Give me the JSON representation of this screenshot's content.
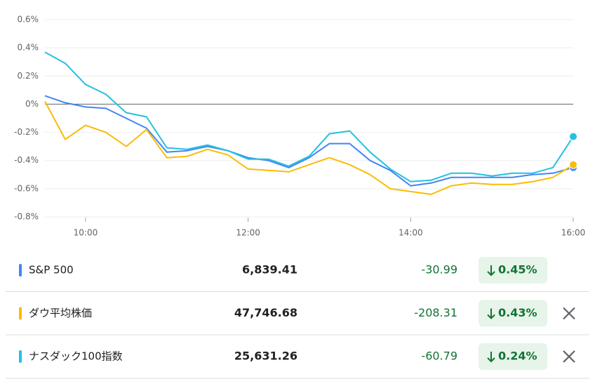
{
  "chart_data": {
    "type": "line",
    "x": [
      570,
      585,
      600,
      615,
      630,
      645,
      660,
      675,
      690,
      705,
      720,
      735,
      750,
      765,
      780,
      795,
      810,
      825,
      840,
      855,
      870,
      885,
      900,
      915,
      930,
      945,
      960
    ],
    "xlim": [
      570,
      960
    ],
    "xticks": [
      {
        "value": 600,
        "label": "10:00"
      },
      {
        "value": 720,
        "label": "12:00"
      },
      {
        "value": 840,
        "label": "14:00"
      },
      {
        "value": 960,
        "label": "16:00"
      }
    ],
    "ylim": [
      -0.8,
      0.6
    ],
    "yticks": [
      {
        "value": 0.6,
        "label": "0.6%"
      },
      {
        "value": 0.4,
        "label": "0.4%"
      },
      {
        "value": 0.2,
        "label": "0.2%"
      },
      {
        "value": 0,
        "label": "0%"
      },
      {
        "value": -0.2,
        "label": "-0.2%"
      },
      {
        "value": -0.4,
        "label": "-0.4%"
      },
      {
        "value": -0.6,
        "label": "-0.6%"
      },
      {
        "value": -0.8,
        "label": "-0.8%"
      }
    ],
    "grid": true,
    "series": [
      {
        "name": "S&P 500",
        "color": "#4285f4",
        "values": [
          0.06,
          0.01,
          -0.02,
          -0.03,
          -0.1,
          -0.17,
          -0.34,
          -0.33,
          -0.3,
          -0.33,
          -0.38,
          -0.4,
          -0.45,
          -0.38,
          -0.28,
          -0.28,
          -0.4,
          -0.47,
          -0.58,
          -0.56,
          -0.52,
          -0.52,
          -0.52,
          -0.52,
          -0.5,
          -0.49,
          -0.45
        ]
      },
      {
        "name": "ダウ平均株価",
        "color": "#fbbc04",
        "values": [
          0.02,
          -0.25,
          -0.15,
          -0.2,
          -0.3,
          -0.18,
          -0.38,
          -0.37,
          -0.32,
          -0.36,
          -0.46,
          -0.47,
          -0.48,
          -0.43,
          -0.38,
          -0.43,
          -0.5,
          -0.6,
          -0.62,
          -0.64,
          -0.58,
          -0.56,
          -0.57,
          -0.57,
          -0.55,
          -0.52,
          -0.43
        ]
      },
      {
        "name": "ナスダック100指数",
        "color": "#24c1e0",
        "values": [
          0.37,
          0.29,
          0.14,
          0.07,
          -0.06,
          -0.09,
          -0.31,
          -0.32,
          -0.29,
          -0.33,
          -0.39,
          -0.39,
          -0.44,
          -0.37,
          -0.21,
          -0.19,
          -0.34,
          -0.46,
          -0.55,
          -0.54,
          -0.49,
          -0.49,
          -0.51,
          -0.49,
          -0.49,
          -0.45,
          -0.23
        ]
      }
    ]
  },
  "table": {
    "rows": [
      {
        "value": "6,839.41",
        "change": "-30.99",
        "percent": "0.45%"
      },
      {
        "value": "47,746.68",
        "change": "-208.31",
        "percent": "0.43%"
      },
      {
        "value": "25,631.26",
        "change": "-60.79",
        "percent": "0.24%"
      }
    ]
  }
}
